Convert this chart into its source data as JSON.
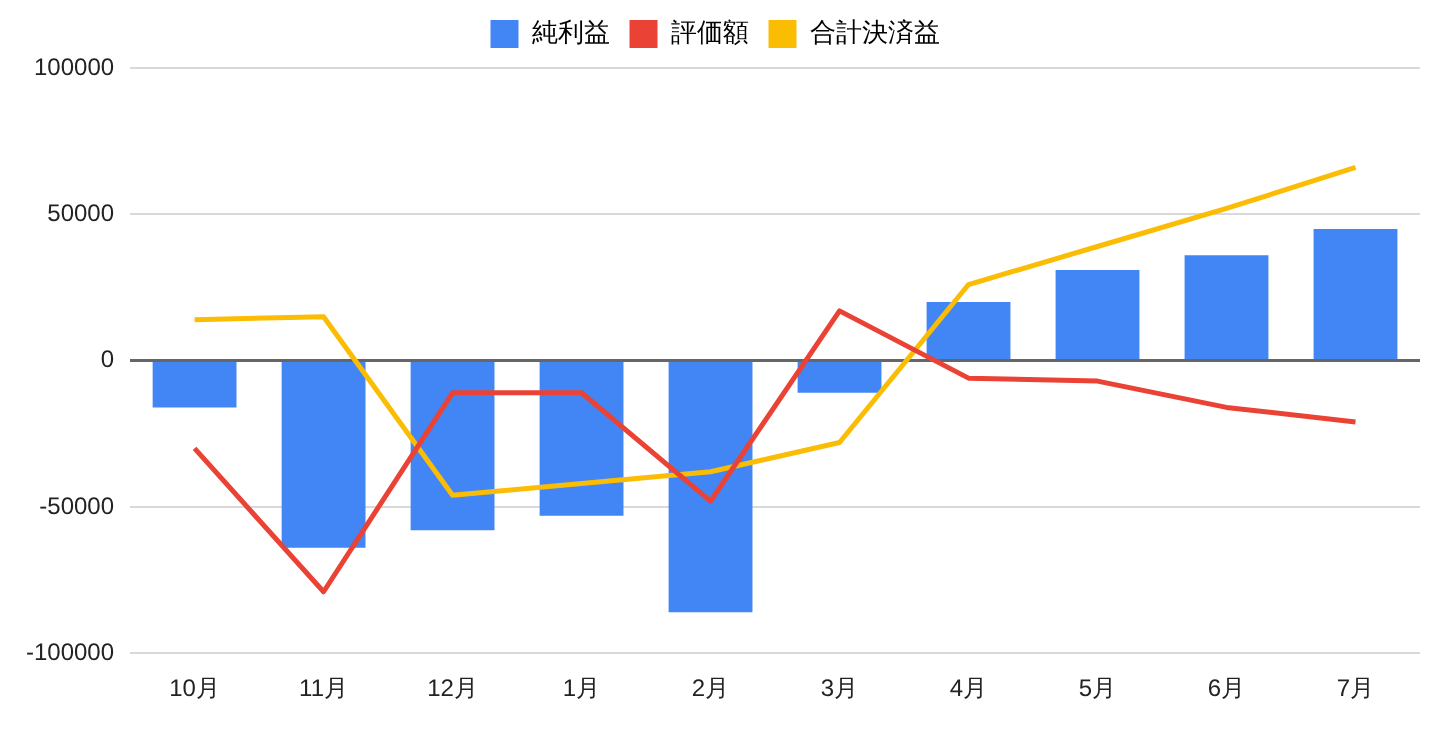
{
  "chart_data": {
    "type": "bar",
    "categories": [
      "10月",
      "11月",
      "12月",
      "1月",
      "2月",
      "3月",
      "4月",
      "5月",
      "6月",
      "7月"
    ],
    "series": [
      {
        "name": "純利益",
        "color": "#4285f4",
        "values": [
          -16000,
          -64000,
          -58000,
          -53000,
          -86000,
          -11000,
          20000,
          31000,
          36000,
          45000
        ]
      },
      {
        "name": "評価額",
        "type": "line",
        "color": "#ea4335",
        "values": [
          -30000,
          -79000,
          -11000,
          -11000,
          -48000,
          17000,
          -6000,
          -7000,
          -16000,
          -21000
        ]
      },
      {
        "name": "合計決済益",
        "type": "line",
        "color": "#fbbc04",
        "values": [
          14000,
          15000,
          -46000,
          -42000,
          -38000,
          -28000,
          26000,
          39000,
          52000,
          66000
        ]
      }
    ],
    "ylim": [
      -100000,
      100000
    ],
    "yticks": [
      -100000,
      -50000,
      0,
      50000,
      100000
    ],
    "grid": "y",
    "legend": "top",
    "marker": "none"
  }
}
